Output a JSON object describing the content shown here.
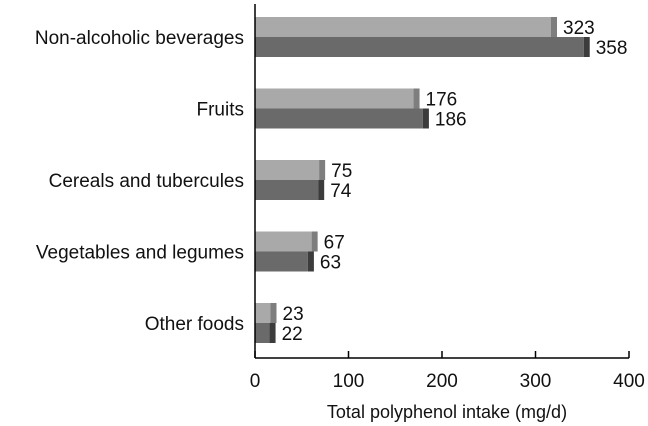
{
  "chart_data": {
    "type": "bar",
    "orientation": "horizontal",
    "categories": [
      "Non-alcoholic beverages",
      "Fruits",
      "Cereals and tubercules",
      "Vegetables and legumes",
      "Other foods"
    ],
    "series": [
      {
        "values": [
          323,
          176,
          75,
          67,
          23
        ],
        "color": "#a9a9a9",
        "shade_color": "#7e7e7e"
      },
      {
        "values": [
          358,
          186,
          74,
          63,
          22
        ],
        "color": "#6a6a6a",
        "shade_color": "#3c3c3c"
      }
    ],
    "xlabel": "Total polyphenol intake (mg/d)",
    "xlim": [
      0,
      400
    ],
    "xticks": [
      0,
      100,
      200,
      300,
      400
    ],
    "grid": false,
    "legend": "none"
  }
}
